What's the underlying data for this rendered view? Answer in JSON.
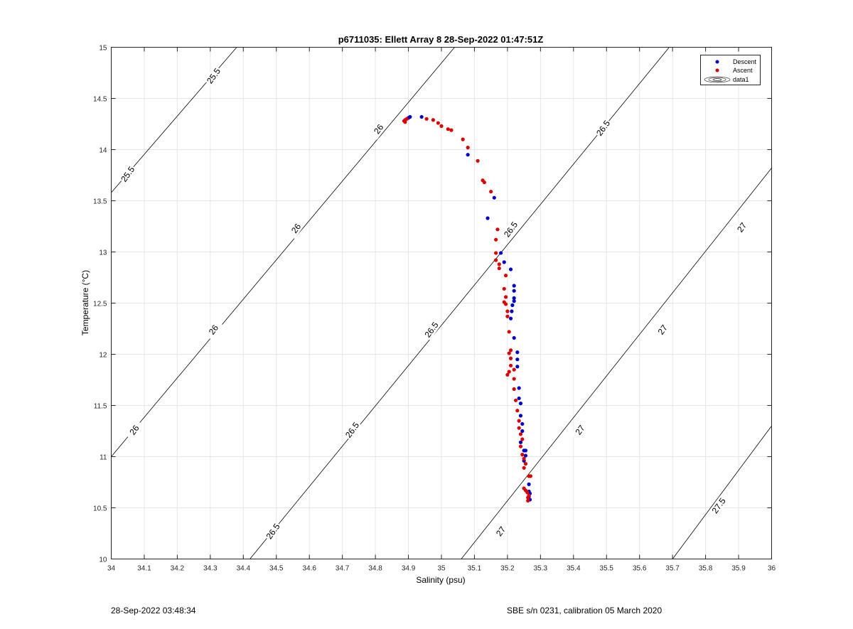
{
  "chart_data": {
    "type": "scatter",
    "title": "p6711035: Ellett Array 8 28-Sep-2022 01:47:51Z",
    "xlabel": "Salinity (psu)",
    "ylabel": "Temperature (°C)",
    "xlim": [
      34,
      36
    ],
    "ylim": [
      10,
      15
    ],
    "xticks": [
      "34",
      "34.1",
      "34.2",
      "34.3",
      "34.4",
      "34.5",
      "34.6",
      "34.7",
      "34.8",
      "34.9",
      "35",
      "35.1",
      "35.2",
      "35.3",
      "35.4",
      "35.5",
      "35.6",
      "35.7",
      "35.8",
      "35.9",
      "36"
    ],
    "yticks": [
      "10",
      "10.5",
      "11",
      "11.5",
      "12",
      "12.5",
      "13",
      "13.5",
      "14",
      "14.5",
      "15"
    ],
    "grid": true,
    "legend_position": "top-right",
    "legend": [
      "Descent",
      "Ascent",
      "data1"
    ],
    "contour_lines": [
      {
        "level": "25.5",
        "x1": 34.0,
        "y1": 13.58,
        "x2": 34.38,
        "y2": 15.0
      },
      {
        "level": "26",
        "x1": 34.0,
        "y1": 11.0,
        "x2": 35.04,
        "y2": 15.0
      },
      {
        "level": "26.5",
        "x1": 34.42,
        "y1": 10.0,
        "x2": 35.69,
        "y2": 15.0
      },
      {
        "level": "27",
        "x1": 35.06,
        "y1": 10.0,
        "x2": 36.0,
        "y2": 13.82
      },
      {
        "level": "27.5",
        "x1": 35.7,
        "y1": 10.0,
        "x2": 36.0,
        "y2": 11.3
      }
    ],
    "contour_labels": [
      {
        "text": "25.5",
        "x": 34.31,
        "y": 14.72
      },
      {
        "text": "25.5",
        "x": 34.05,
        "y": 13.76
      },
      {
        "text": "26",
        "x": 34.81,
        "y": 14.2
      },
      {
        "text": "26",
        "x": 34.56,
        "y": 13.23
      },
      {
        "text": "26",
        "x": 34.31,
        "y": 12.24
      },
      {
        "text": "26",
        "x": 34.07,
        "y": 11.26
      },
      {
        "text": "26.5",
        "x": 35.49,
        "y": 14.21
      },
      {
        "text": "26.5",
        "x": 35.21,
        "y": 13.22
      },
      {
        "text": "26.5",
        "x": 34.97,
        "y": 12.24
      },
      {
        "text": "26.5",
        "x": 34.73,
        "y": 11.26
      },
      {
        "text": "26.5",
        "x": 34.49,
        "y": 10.27
      },
      {
        "text": "27",
        "x": 35.91,
        "y": 13.24
      },
      {
        "text": "27",
        "x": 35.67,
        "y": 12.24
      },
      {
        "text": "27",
        "x": 35.42,
        "y": 11.26
      },
      {
        "text": "27",
        "x": 35.18,
        "y": 10.27
      },
      {
        "text": "27.5",
        "x": 35.84,
        "y": 10.52
      }
    ],
    "series": [
      {
        "name": "Descent",
        "color": "#0000cc",
        "points": [
          [
            34.9,
            14.31
          ],
          [
            34.905,
            14.32
          ],
          [
            34.94,
            14.32
          ],
          [
            35.08,
            13.95
          ],
          [
            35.14,
            13.33
          ],
          [
            35.16,
            13.53
          ],
          [
            35.18,
            12.99
          ],
          [
            35.19,
            12.9
          ],
          [
            35.21,
            12.83
          ],
          [
            35.22,
            12.67
          ],
          [
            35.22,
            12.62
          ],
          [
            35.22,
            12.55
          ],
          [
            35.22,
            12.52
          ],
          [
            35.215,
            12.48
          ],
          [
            35.213,
            12.42
          ],
          [
            35.21,
            12.35
          ],
          [
            35.22,
            12.16
          ],
          [
            35.23,
            12.02
          ],
          [
            35.23,
            11.95
          ],
          [
            35.23,
            11.88
          ],
          [
            35.235,
            11.67
          ],
          [
            35.235,
            11.57
          ],
          [
            35.24,
            11.52
          ],
          [
            35.24,
            11.4
          ],
          [
            35.245,
            11.32
          ],
          [
            35.245,
            11.25
          ],
          [
            35.24,
            11.14
          ],
          [
            35.25,
            11.06
          ],
          [
            35.255,
            11.06
          ],
          [
            35.255,
            11.01
          ],
          [
            35.25,
            10.96
          ],
          [
            35.265,
            10.73
          ],
          [
            35.265,
            10.66
          ],
          [
            35.268,
            10.64
          ],
          [
            35.265,
            10.61
          ],
          [
            35.268,
            10.58
          ]
        ]
      },
      {
        "name": "Ascent",
        "color": "#dd0000",
        "points": [
          [
            34.887,
            14.28
          ],
          [
            34.89,
            14.29
          ],
          [
            34.895,
            14.3
          ],
          [
            34.89,
            14.27
          ],
          [
            34.955,
            14.3
          ],
          [
            34.975,
            14.29
          ],
          [
            34.99,
            14.26
          ],
          [
            35.0,
            14.23
          ],
          [
            35.02,
            14.2
          ],
          [
            35.03,
            14.19
          ],
          [
            35.065,
            14.1
          ],
          [
            35.08,
            14.02
          ],
          [
            35.11,
            13.89
          ],
          [
            35.125,
            13.7
          ],
          [
            35.13,
            13.68
          ],
          [
            35.15,
            13.59
          ],
          [
            35.17,
            13.22
          ],
          [
            35.165,
            13.12
          ],
          [
            35.165,
            12.99
          ],
          [
            35.165,
            12.92
          ],
          [
            35.175,
            12.88
          ],
          [
            35.175,
            12.84
          ],
          [
            35.195,
            12.77
          ],
          [
            35.19,
            12.64
          ],
          [
            35.195,
            12.56
          ],
          [
            35.19,
            12.51
          ],
          [
            35.195,
            12.49
          ],
          [
            35.2,
            12.42
          ],
          [
            35.2,
            12.37
          ],
          [
            35.205,
            12.22
          ],
          [
            35.21,
            12.04
          ],
          [
            35.205,
            12.01
          ],
          [
            35.21,
            11.96
          ],
          [
            35.21,
            11.89
          ],
          [
            35.205,
            11.83
          ],
          [
            35.2,
            11.8
          ],
          [
            35.22,
            11.85
          ],
          [
            35.22,
            11.76
          ],
          [
            35.22,
            11.66
          ],
          [
            35.225,
            11.55
          ],
          [
            35.23,
            11.45
          ],
          [
            35.235,
            11.35
          ],
          [
            35.235,
            11.28
          ],
          [
            35.24,
            11.22
          ],
          [
            35.245,
            11.17
          ],
          [
            35.24,
            11.1
          ],
          [
            35.245,
            11.02
          ],
          [
            35.25,
            10.98
          ],
          [
            35.255,
            10.93
          ],
          [
            35.25,
            10.89
          ],
          [
            35.265,
            10.81
          ],
          [
            35.27,
            10.81
          ],
          [
            35.25,
            10.69
          ],
          [
            35.255,
            10.67
          ],
          [
            35.26,
            10.65
          ],
          [
            35.265,
            10.62
          ],
          [
            35.262,
            10.6
          ],
          [
            35.262,
            10.57
          ]
        ]
      }
    ]
  },
  "footer": {
    "left": "28-Sep-2022 03:48:34",
    "right": "SBE s/n 0231, calibration 05 March 2020"
  }
}
